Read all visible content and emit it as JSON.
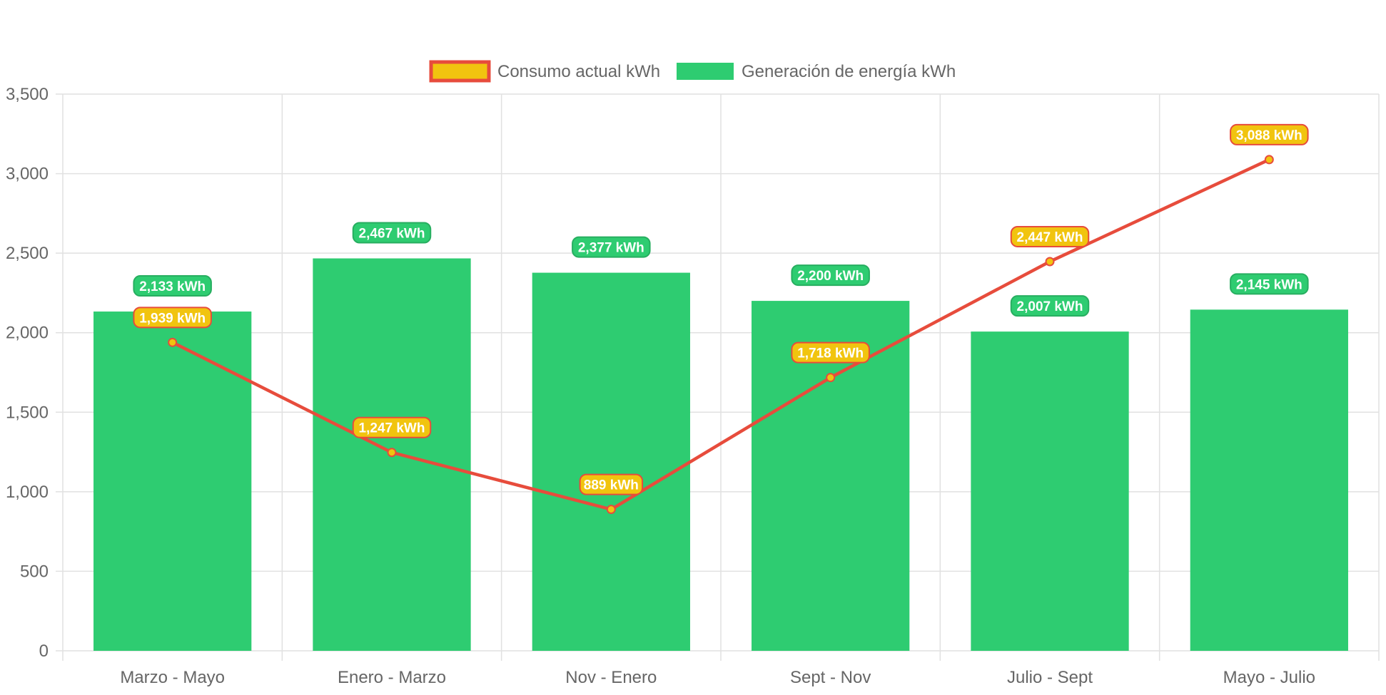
{
  "chart_data": {
    "type": "bar",
    "categories": [
      "Marzo - Mayo",
      "Enero - Marzo",
      "Nov - Enero",
      "Sept - Nov",
      "Julio - Sept",
      "Mayo - Julio"
    ],
    "series": [
      {
        "name": "Consumo actual kWh",
        "type": "line",
        "color": "#e74c3c",
        "point_fill": "#f1c40f",
        "values": [
          1939,
          1247,
          889,
          1718,
          2447,
          3088
        ],
        "labels": [
          "1,939 kWh",
          "1,247 kWh",
          "889 kWh",
          "1,718 kWh",
          "2,447 kWh",
          "3,088 kWh"
        ]
      },
      {
        "name": "Generación de energía kWh",
        "type": "bar",
        "color": "#2ecc71",
        "values": [
          2133,
          2467,
          2377,
          2200,
          2007,
          2145
        ],
        "labels": [
          "2,133 kWh",
          "2,467 kWh",
          "2,377 kWh",
          "2,200 kWh",
          "2,007 kWh",
          "2,145 kWh"
        ]
      }
    ],
    "ylim": [
      0,
      3500
    ],
    "yticks": [
      0,
      500,
      1000,
      1500,
      2000,
      2500,
      3000,
      3500
    ],
    "ytick_labels": [
      "0",
      "500",
      "1,000",
      "1,500",
      "2,000",
      "2,500",
      "3,000",
      "3,500"
    ],
    "grid": true,
    "legend_position": "top",
    "label_badge_colors": {
      "bar_fill": "#2ecc71",
      "bar_border": "#27ae60",
      "line_fill": "#f1c40f",
      "line_border": "#e74c3c"
    }
  }
}
